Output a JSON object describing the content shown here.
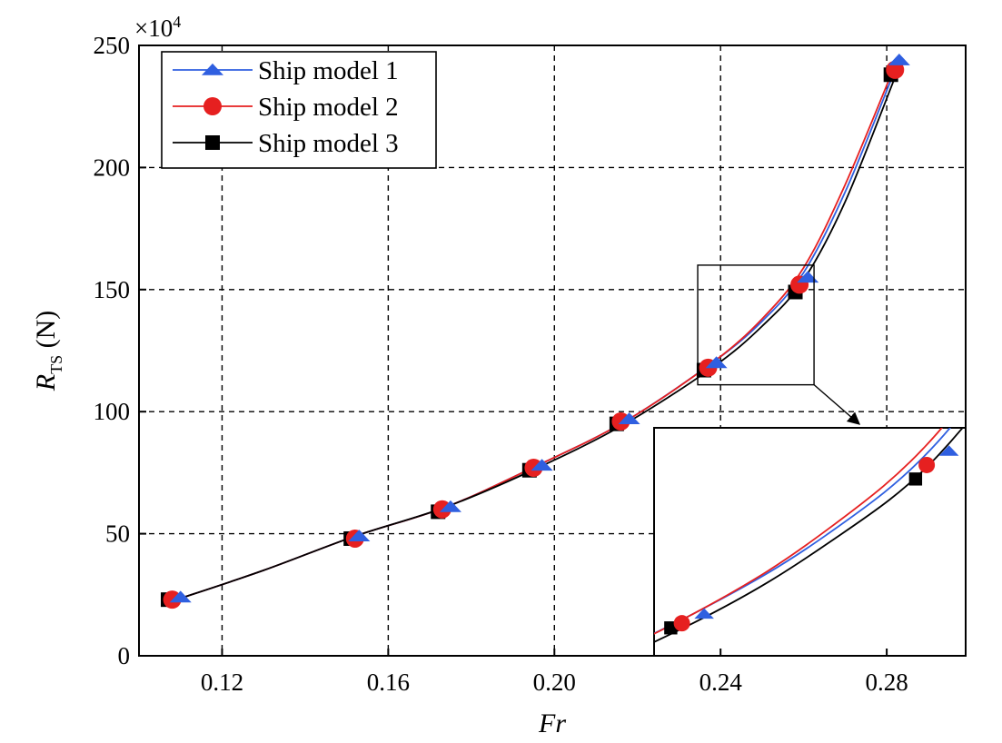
{
  "chart_data": {
    "type": "line",
    "xlabel": "Fr",
    "ylabel_main": "R",
    "ylabel_sub": "TS",
    "ylabel_unit": " (N)",
    "scale_base": "×10",
    "scale_exp": "4",
    "xlim": [
      0.1,
      0.299
    ],
    "ylim": [
      0,
      250
    ],
    "xticks": [
      0.12,
      0.16,
      0.2,
      0.24,
      0.28
    ],
    "xtick_labels": [
      "0.12",
      "0.16",
      "0.20",
      "0.24",
      "0.28"
    ],
    "yticks": [
      0,
      50,
      100,
      150,
      200,
      250
    ],
    "ytick_labels": [
      "0",
      "50",
      "100",
      "150",
      "200",
      "250"
    ],
    "grid": true,
    "legend_position": "top-left",
    "series": [
      {
        "name": "Ship model 1",
        "color": "#2f5fe0",
        "marker": "triangle",
        "x": [
          0.11,
          0.153,
          0.175,
          0.197,
          0.218,
          0.239,
          0.261,
          0.283
        ],
        "y": [
          24,
          49,
          61,
          78,
          97,
          120,
          155,
          244
        ]
      },
      {
        "name": "Ship model 2",
        "color": "#e62020",
        "marker": "circle",
        "x": [
          0.108,
          0.152,
          0.173,
          0.195,
          0.216,
          0.237,
          0.259,
          0.282
        ],
        "y": [
          23,
          48,
          60,
          77,
          96,
          118,
          152,
          240
        ]
      },
      {
        "name": "Ship model 3",
        "color": "#000000",
        "marker": "square",
        "x": [
          0.107,
          0.151,
          0.172,
          0.194,
          0.215,
          0.236,
          0.258,
          0.281
        ],
        "y": [
          23,
          48,
          59,
          76,
          95,
          117,
          149,
          238
        ]
      }
    ],
    "curves": [
      {
        "color": "#2f5fe0",
        "x": [
          0.109,
          0.13,
          0.152,
          0.174,
          0.196,
          0.217,
          0.238,
          0.25,
          0.26,
          0.27,
          0.282
        ],
        "y": [
          23,
          35,
          49,
          61,
          78,
          96,
          120,
          137,
          157,
          190,
          240
        ]
      },
      {
        "color": "#e62020",
        "x": [
          0.109,
          0.13,
          0.152,
          0.174,
          0.196,
          0.217,
          0.238,
          0.25,
          0.26,
          0.27,
          0.282
        ],
        "y": [
          23,
          35,
          49,
          61,
          78,
          96,
          120,
          138,
          159,
          193,
          242
        ]
      },
      {
        "color": "#000000",
        "x": [
          0.109,
          0.13,
          0.152,
          0.174,
          0.196,
          0.217,
          0.238,
          0.25,
          0.26,
          0.27,
          0.282
        ],
        "y": [
          23,
          35,
          49,
          61,
          77,
          95,
          118,
          135,
          154,
          186,
          237
        ]
      }
    ],
    "inset": {
      "xlim": [
        0.2345,
        0.2625
      ],
      "ylim": [
        111,
        160
      ]
    }
  }
}
